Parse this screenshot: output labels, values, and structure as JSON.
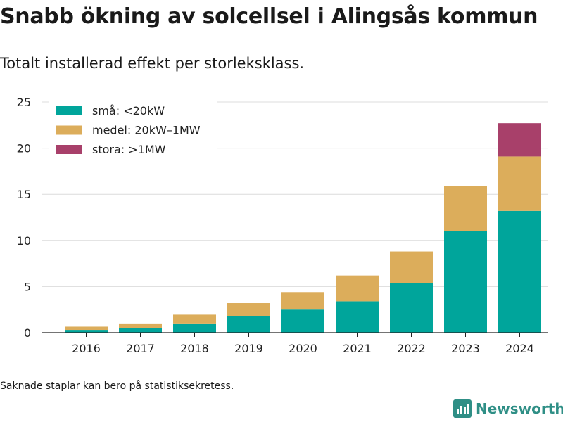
{
  "header": {
    "title": "Snabb ökning av solcellsel i Alingsås kommun",
    "subtitle": "Totalt installerad effekt per storleksklass."
  },
  "footnote": "Saknade staplar kan bero på statistiksekretess.",
  "brand": {
    "name": "Newsworthy",
    "icon": "bar-chart-logo-icon",
    "color": "#2f8f86"
  },
  "chart_data": {
    "type": "bar",
    "stacked": true,
    "categories": [
      "2016",
      "2017",
      "2018",
      "2019",
      "2020",
      "2021",
      "2022",
      "2023",
      "2024"
    ],
    "series": [
      {
        "name": "små: <20kW",
        "color": "#00a59b",
        "values": [
          0.3,
          0.5,
          1.0,
          1.8,
          2.5,
          3.4,
          5.4,
          11.0,
          13.2
        ]
      },
      {
        "name": "medel: 20kW–1MW",
        "color": "#dcad5b",
        "values": [
          0.35,
          0.5,
          0.95,
          1.4,
          1.9,
          2.8,
          3.4,
          4.9,
          5.9
        ]
      },
      {
        "name": "stora: >1MW",
        "color": "#a8406a",
        "values": [
          0,
          0,
          0,
          0,
          0,
          0,
          0,
          0,
          3.6
        ]
      }
    ],
    "ylim": [
      0,
      25
    ],
    "yticks": [
      0,
      5,
      10,
      15,
      20,
      25
    ],
    "grid": true,
    "legend": "top-left"
  }
}
